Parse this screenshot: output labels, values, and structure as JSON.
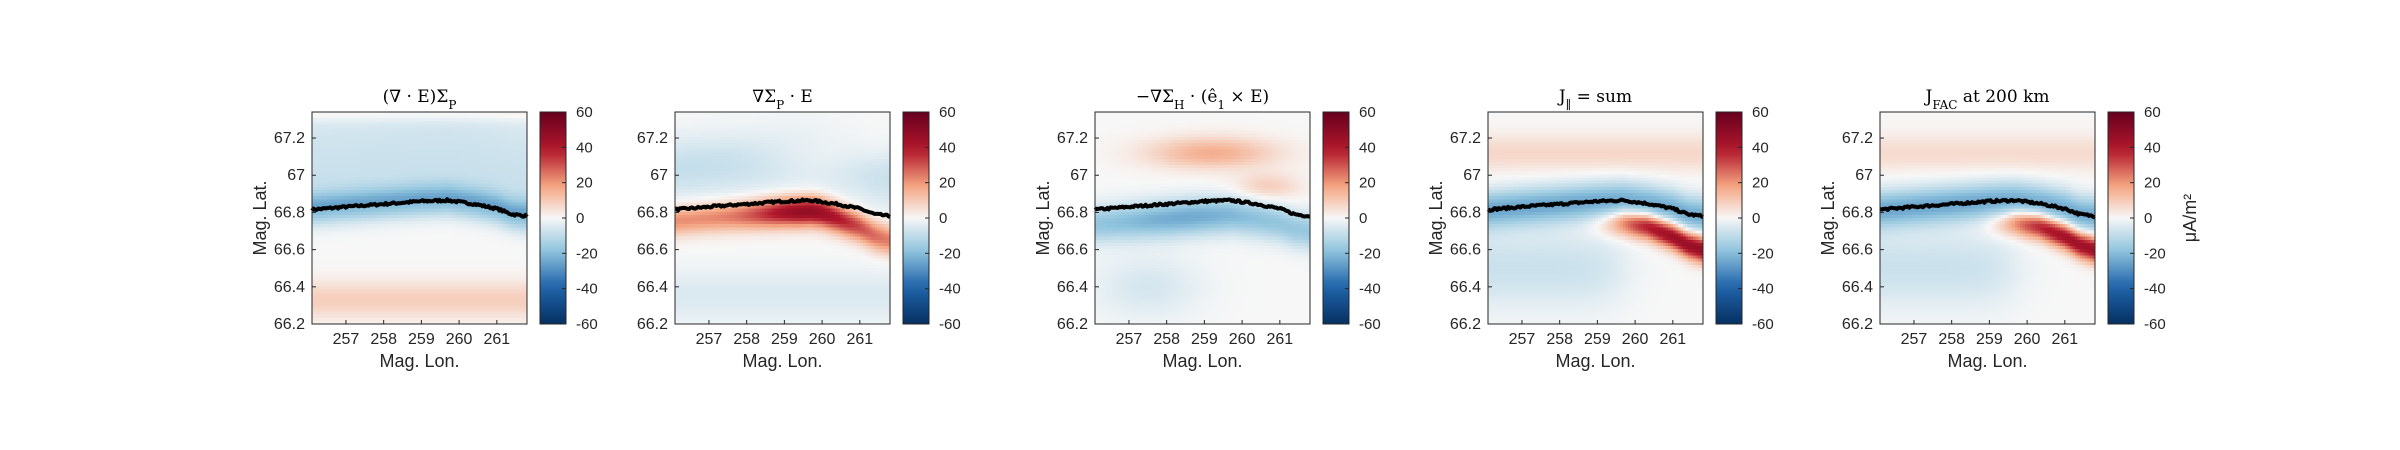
{
  "figure": {
    "colorbar_range": [
      -60,
      60
    ],
    "colorbar_ticks": [
      "60",
      "40",
      "20",
      "0",
      "-20",
      "-40",
      "-60"
    ],
    "colormap": {
      "low": "#053061",
      "mid": "#f7f7f7",
      "high": "#67001f"
    },
    "boundary_color": "#000000"
  },
  "chart_data": [
    {
      "type": "heatmap",
      "title": "(∇ · E)Σ_P",
      "xlabel": "Mag. Lon.",
      "ylabel": "Mag. Lat.",
      "xlim": [
        256.1,
        261.8
      ],
      "ylim": [
        66.2,
        67.34
      ],
      "xticks": [
        "257",
        "258",
        "259",
        "260",
        "261"
      ],
      "yticks": [
        "67.2",
        "67",
        "66.8",
        "66.6",
        "66.4",
        "66.2"
      ],
      "colorbar_label": "",
      "boundary": {
        "lon": [
          256.1,
          257.0,
          258.0,
          259.0,
          259.7,
          260.4,
          261.0,
          261.4,
          261.8
        ],
        "lat": [
          66.815,
          66.83,
          66.845,
          66.86,
          66.865,
          66.845,
          66.82,
          66.79,
          66.78
        ]
      },
      "field_description": "weak blue band (~-20) along boundary, light blue above, faint red (~+8) below"
    },
    {
      "type": "heatmap",
      "title": "∇Σ_P · E",
      "xlabel": "Mag. Lon.",
      "ylabel": "",
      "xlim": [
        256.1,
        261.8
      ],
      "ylim": [
        66.2,
        67.34
      ],
      "xticks": [
        "257",
        "258",
        "259",
        "260",
        "261"
      ],
      "yticks": [
        "67.2",
        "67",
        "66.8",
        "66.6",
        "66.4",
        "66.2"
      ],
      "colorbar_label": "",
      "boundary": {
        "lon": [
          256.1,
          257.0,
          258.0,
          259.0,
          259.7,
          260.4,
          261.0,
          261.4,
          261.8
        ],
        "lat": [
          66.815,
          66.83,
          66.845,
          66.86,
          66.865,
          66.845,
          66.82,
          66.79,
          66.78
        ]
      },
      "field_description": "strong red band (~+45) just below boundary, peaking near 259.5, faint blue above"
    },
    {
      "type": "heatmap",
      "title": "−∇Σ_H · (ê_1 × E)",
      "xlabel": "Mag. Lon.",
      "ylabel": "Mag. Lat.",
      "xlim": [
        256.1,
        261.8
      ],
      "ylim": [
        66.2,
        67.34
      ],
      "xticks": [
        "257",
        "258",
        "259",
        "260",
        "261"
      ],
      "yticks": [
        "67.2",
        "67",
        "66.8",
        "66.6",
        "66.4",
        "66.2"
      ],
      "colorbar_label": "",
      "boundary": {
        "lon": [
          256.1,
          257.0,
          258.0,
          259.0,
          259.7,
          260.4,
          261.0,
          261.4,
          261.8
        ],
        "lat": [
          66.815,
          66.83,
          66.845,
          66.86,
          66.865,
          66.845,
          66.82,
          66.79,
          66.78
        ]
      },
      "field_description": "blue band (~-22) below boundary, light red patches above near 67.1"
    },
    {
      "type": "heatmap",
      "title": "J_∥ = sum",
      "xlabel": "Mag. Lon.",
      "ylabel": "Mag. Lat.",
      "xlim": [
        256.1,
        261.8
      ],
      "ylim": [
        66.2,
        67.34
      ],
      "xticks": [
        "257",
        "258",
        "259",
        "260",
        "261"
      ],
      "yticks": [
        "67.2",
        "67",
        "66.8",
        "66.6",
        "66.4",
        "66.2"
      ],
      "colorbar_label": "",
      "boundary": {
        "lon": [
          256.1,
          257.0,
          258.0,
          259.0,
          259.7,
          260.4,
          261.0,
          261.4,
          261.8
        ],
        "lat": [
          66.815,
          66.83,
          66.845,
          66.86,
          66.865,
          66.845,
          66.82,
          66.79,
          66.78
        ]
      },
      "field_description": "blue band (~-25) along boundary, strong red streak (~+45) below boundary east of 259.5"
    },
    {
      "type": "heatmap",
      "title": "J_FAC at 200 km",
      "xlabel": "Mag. Lon.",
      "ylabel": "Mag. Lat.",
      "xlim": [
        256.1,
        261.8
      ],
      "ylim": [
        66.2,
        67.34
      ],
      "xticks": [
        "257",
        "258",
        "259",
        "260",
        "261"
      ],
      "yticks": [
        "67.2",
        "67",
        "66.8",
        "66.6",
        "66.4",
        "66.2"
      ],
      "colorbar_label": "μA/m²",
      "boundary": {
        "lon": [
          256.1,
          257.0,
          258.0,
          259.0,
          259.7,
          260.4,
          261.0,
          261.4,
          261.8
        ],
        "lat": [
          66.815,
          66.83,
          66.845,
          66.86,
          66.865,
          66.845,
          66.82,
          66.79,
          66.78
        ]
      },
      "field_description": "blue band (~-25) along boundary, strong red streak (~+45) below boundary east of 259.5"
    }
  ]
}
